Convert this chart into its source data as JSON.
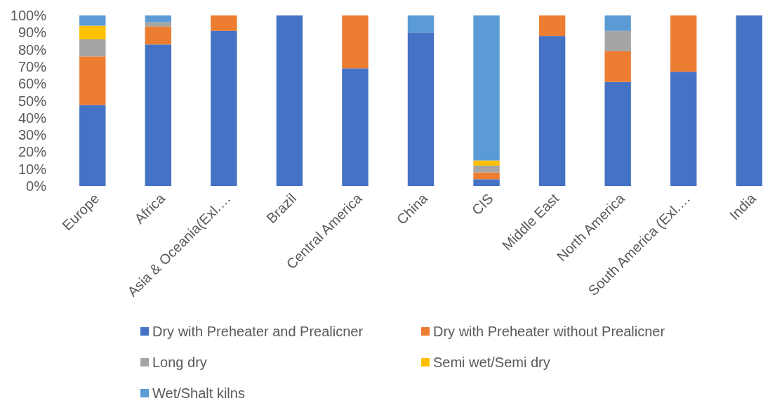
{
  "chart_data": {
    "type": "bar",
    "stacked": true,
    "categories": [
      "Europe",
      "Africa",
      "Asia & Oceania(Exl.…",
      "Brazil",
      "Central America",
      "China",
      "CIS",
      "Middle East",
      "North America",
      "South America (Exl.…",
      "India"
    ],
    "series": [
      {
        "name": "Dry with Preheater and Prealicner",
        "color": "#4472c4",
        "values": [
          47.5,
          83,
          91,
          100,
          69,
          90,
          4,
          88,
          61,
          67,
          100
        ]
      },
      {
        "name": "Dry with Preheater without Prealicner",
        "color": "#ed7d31",
        "values": [
          28.5,
          10.5,
          9,
          0,
          31,
          0,
          4,
          12,
          18,
          33,
          0
        ]
      },
      {
        "name": "Long dry",
        "color": "#a5a5a5",
        "values": [
          10,
          2.5,
          0,
          0,
          0,
          0,
          4,
          0,
          12,
          0,
          0
        ]
      },
      {
        "name": "Semi wet/Semi dry",
        "color": "#ffc000",
        "values": [
          8,
          0,
          0,
          0,
          0,
          0,
          3,
          0,
          0,
          0,
          0
        ]
      },
      {
        "name": "Wet/Shalt kilns",
        "color": "#5b9bd5",
        "values": [
          6,
          4,
          0,
          0,
          0,
          10,
          85,
          0,
          9,
          0,
          0
        ]
      }
    ],
    "ylim": [
      0,
      100
    ],
    "yticks": [
      {
        "value": 0,
        "label": "0%"
      },
      {
        "value": 10,
        "label": "10%"
      },
      {
        "value": 20,
        "label": "20%"
      },
      {
        "value": 30,
        "label": "30%"
      },
      {
        "value": 40,
        "label": "40%"
      },
      {
        "value": 50,
        "label": "50%"
      },
      {
        "value": 60,
        "label": "60%"
      },
      {
        "value": 70,
        "label": "70%"
      },
      {
        "value": 80,
        "label": "80%"
      },
      {
        "value": 90,
        "label": "90%"
      },
      {
        "value": 100,
        "label": "100%"
      }
    ],
    "legend": "bottom"
  }
}
